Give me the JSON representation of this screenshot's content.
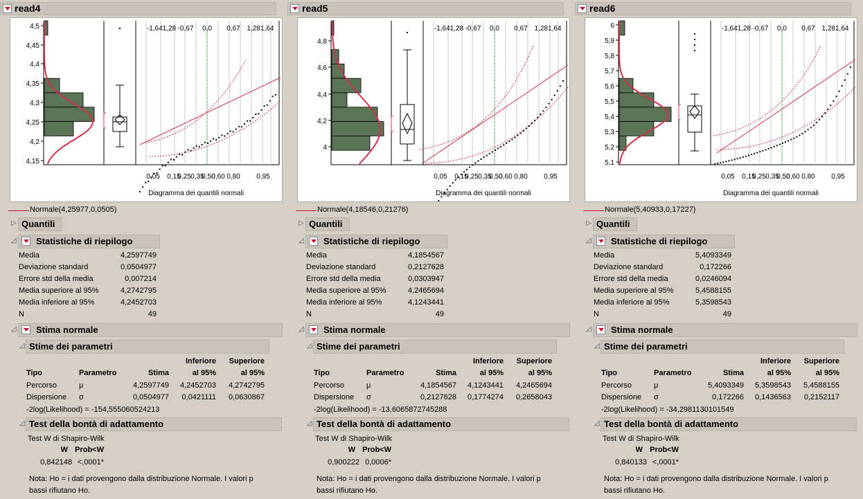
{
  "panels": [
    {
      "title": "read4",
      "legend": "Normale(4,25977,0,0505)",
      "xaxis_label": "Diagramma dei quantili normali",
      "top_ticks": [
        "-1,641,28",
        "-0,67",
        "0,0",
        "0,67",
        "1,281,64"
      ],
      "bottom_ticks": [
        "0,05",
        "0,15",
        "0,35",
        "0,60",
        "0,80",
        "0,95"
      ],
      "bottom_ticks2": [
        "0,25",
        "0,50"
      ],
      "yticks": [
        "4,5",
        "4,45",
        "4,4",
        "4,35",
        "4,3",
        "4,25",
        "4,2",
        "4,15"
      ],
      "quantili": "Quantili",
      "summary": {
        "title": "Statistiche di riepilogo",
        "rows": [
          {
            "label": "Media",
            "value": "4,2597749"
          },
          {
            "label": "Deviazione standard",
            "value": "0,0504977"
          },
          {
            "label": "Errore std della media",
            "value": "0,007214"
          },
          {
            "label": "Media superiore al 95%",
            "value": "4,2742795"
          },
          {
            "label": "Media inferiore al 95%",
            "value": "4,2452703"
          },
          {
            "label": "N",
            "value": "49"
          }
        ]
      },
      "fit": {
        "title": "Stima normale",
        "params_title": "Stime dei parametri",
        "head1": [
          "Inferiore",
          "Superiore"
        ],
        "head2": [
          "Tipo",
          "Parametro",
          "Stima",
          "al 95%",
          "al 95%"
        ],
        "rows": [
          [
            "Percorso",
            "μ",
            "4,2597749",
            "4,2452703",
            "4,2742795"
          ],
          [
            "Dispersione",
            "σ",
            "0,0504977",
            "0,0421111",
            "0,0630867"
          ]
        ],
        "loglik": "-2log(Likelihood) = -154,555060524213"
      },
      "gof": {
        "title": "Test della bontà di adattamento",
        "test": "Test W di Shapiro-Wilk",
        "head": [
          "W",
          "Prob<W"
        ],
        "w": "0,842148",
        "p": "<,0001*",
        "note1": "Nota: Ho = i dati provengono dalla distribuzione Normale. I valori p",
        "note2": "bassi rifiutano Ho."
      }
    },
    {
      "title": "read5",
      "legend": "Normale(4,18546,0,21276)",
      "xaxis_label": "Diagramma dei quantili normali",
      "top_ticks": [
        "-1,641,28",
        "-0,67",
        "0,0",
        "0,67",
        "1,281,64"
      ],
      "bottom_ticks": [
        "0,05",
        "0,15",
        "0,35",
        "0,60",
        "0,80",
        "0,95"
      ],
      "bottom_ticks2": [
        "0,25",
        "0,50"
      ],
      "yticks": [
        "4,8",
        "4,6",
        "4,4",
        "4,2",
        "4"
      ],
      "quantili": "Quantili",
      "summary": {
        "title": "Statistiche di riepilogo",
        "rows": [
          {
            "label": "Media",
            "value": "4,1854567"
          },
          {
            "label": "Deviazione standard",
            "value": "0,2127628"
          },
          {
            "label": "Errore std della media",
            "value": "0,0303947"
          },
          {
            "label": "Media superiore al 95%",
            "value": "4,2465694"
          },
          {
            "label": "Media inferiore al 95%",
            "value": "4,1243441"
          },
          {
            "label": "N",
            "value": "49"
          }
        ]
      },
      "fit": {
        "title": "Stima normale",
        "params_title": "Stime dei parametri",
        "head1": [
          "Inferiore",
          "Superiore"
        ],
        "head2": [
          "Tipo",
          "Parametro",
          "Stima",
          "al 95%",
          "al 95%"
        ],
        "rows": [
          [
            "Percorso",
            "μ",
            "4,1854567",
            "4,1243441",
            "4,2465694"
          ],
          [
            "Dispersione",
            "σ",
            "0,2127628",
            "0,1774274",
            "0,2658043"
          ]
        ],
        "loglik": "-2log(Likelihood) = -13,6065872745288"
      },
      "gof": {
        "title": "Test della bontà di adattamento",
        "test": "Test W di Shapiro-Wilk",
        "head": [
          "W",
          "Prob<W"
        ],
        "w": "0,900222",
        "p": "0,0006*",
        "note1": "Nota: Ho = i dati provengono dalla distribuzione Normale. I valori p",
        "note2": "bassi rifiutano Ho."
      }
    },
    {
      "title": "read6",
      "legend": "Normale(5,40933,0,17227)",
      "xaxis_label": "Diagramma dei quantili normali",
      "top_ticks": [
        "-1,641,28",
        "-0,67",
        "0,0",
        "0,67",
        "1,281,64"
      ],
      "bottom_ticks": [
        "0,05",
        "0,15",
        "0,35",
        "0,60",
        "0,80",
        "0,95"
      ],
      "bottom_ticks2": [
        "0,25",
        "0,50"
      ],
      "yticks": [
        "6",
        "5,9",
        "5,8",
        "5,7",
        "5,6",
        "5,5",
        "5,4",
        "5,3",
        "5,2",
        "5,1"
      ],
      "quantili": "Quantili",
      "summary": {
        "title": "Statistiche di riepilogo",
        "rows": [
          {
            "label": "Media",
            "value": "5,4093349"
          },
          {
            "label": "Deviazione standard",
            "value": "0,172266"
          },
          {
            "label": "Errore std della media",
            "value": "0,0246094"
          },
          {
            "label": "Media superiore al 95%",
            "value": "5,4588155"
          },
          {
            "label": "Media inferiore al 95%",
            "value": "5,3598543"
          },
          {
            "label": "N",
            "value": "49"
          }
        ]
      },
      "fit": {
        "title": "Stima normale",
        "params_title": "Stime dei parametri",
        "head1": [
          "Inferiore",
          "Superiore"
        ],
        "head2": [
          "Tipo",
          "Parametro",
          "Stima",
          "al 95%",
          "al 95%"
        ],
        "rows": [
          [
            "Percorso",
            "μ",
            "5,4093349",
            "5,3598543",
            "5,4588155"
          ],
          [
            "Dispersione",
            "σ",
            "0,172266",
            "0,1436563",
            "0,2152117"
          ]
        ],
        "loglik": "-2log(Likelihood) = -34,2981130101549"
      },
      "gof": {
        "title": "Test della bontà di adattamento",
        "test": "Test W di Shapiro-Wilk",
        "head": [
          "W",
          "Prob<W"
        ],
        "w": "0,840133",
        "p": "<,0001*",
        "note1": "Nota: Ho = i dati provengono dalla distribuzione Normale. I valori p",
        "note2": "bassi rifiutano Ho."
      }
    }
  ],
  "colors": {
    "hist": "#5a7556",
    "curve": "#d0304a",
    "green_line": "#4caf50"
  }
}
